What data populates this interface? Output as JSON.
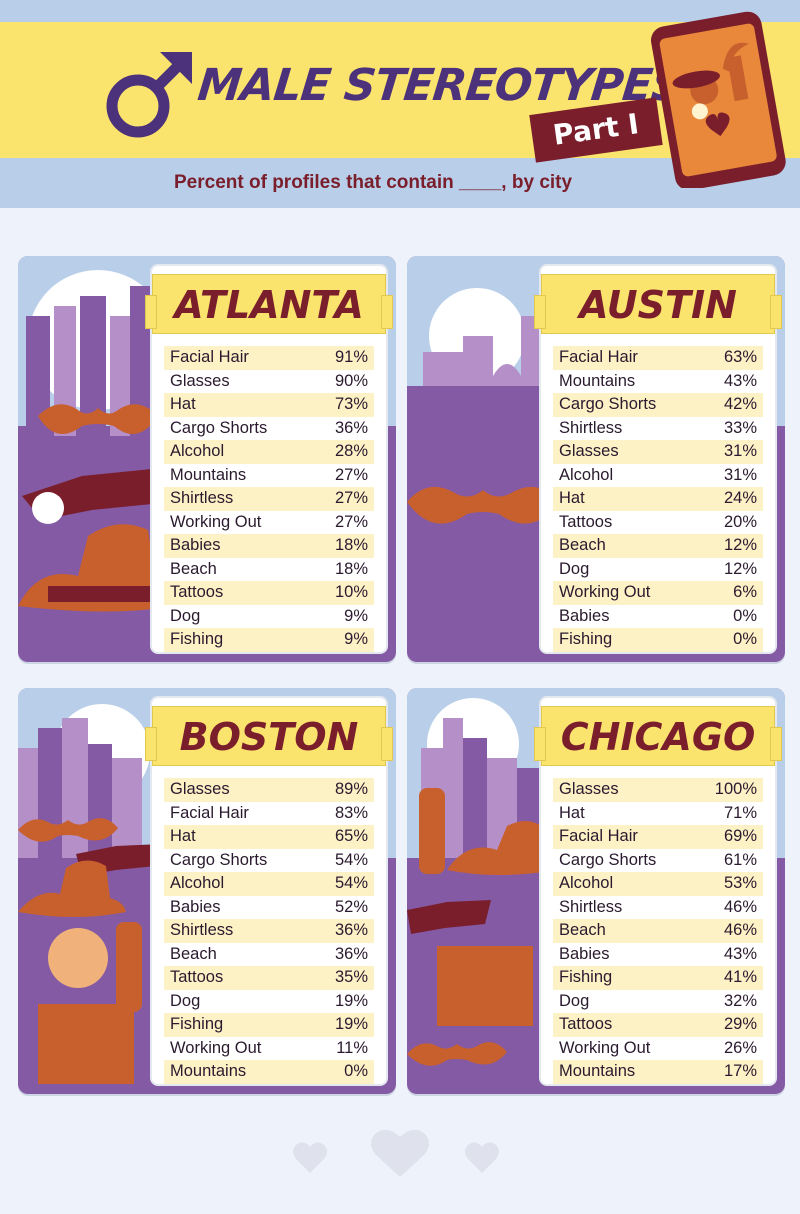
{
  "header": {
    "title": "MALE STEREOTYPES",
    "part": "Part I",
    "subtitle": "Percent of profiles that contain ____, by city"
  },
  "colors": {
    "purple": "#845aa4",
    "yellow": "#fbe46e",
    "maroon": "#7a1e2c",
    "sky": "#b9cfe9",
    "orange": "#c8602e"
  },
  "cities": [
    {
      "name": "ATLANTA",
      "items": [
        {
          "label": "Facial Hair",
          "value": "91%"
        },
        {
          "label": "Glasses",
          "value": "90%"
        },
        {
          "label": "Hat",
          "value": "73%"
        },
        {
          "label": "Cargo Shorts",
          "value": "36%"
        },
        {
          "label": "Alcohol",
          "value": "28%"
        },
        {
          "label": "Mountains",
          "value": "27%"
        },
        {
          "label": "Shirtless",
          "value": "27%"
        },
        {
          "label": "Working Out",
          "value": "27%"
        },
        {
          "label": "Babies",
          "value": "18%"
        },
        {
          "label": "Beach",
          "value": "18%"
        },
        {
          "label": "Tattoos",
          "value": "10%"
        },
        {
          "label": "Dog",
          "value": "9%"
        },
        {
          "label": "Fishing",
          "value": "9%"
        }
      ]
    },
    {
      "name": "AUSTIN",
      "items": [
        {
          "label": "Facial Hair",
          "value": "63%"
        },
        {
          "label": "Mountains",
          "value": "43%"
        },
        {
          "label": "Cargo Shorts",
          "value": "42%"
        },
        {
          "label": "Shirtless",
          "value": "33%"
        },
        {
          "label": "Glasses",
          "value": "31%"
        },
        {
          "label": "Alcohol",
          "value": "31%"
        },
        {
          "label": "Hat",
          "value": "24%"
        },
        {
          "label": "Tattoos",
          "value": "20%"
        },
        {
          "label": "Beach",
          "value": "12%"
        },
        {
          "label": "Dog",
          "value": "12%"
        },
        {
          "label": "Working Out",
          "value": "6%"
        },
        {
          "label": "Babies",
          "value": "0%"
        },
        {
          "label": "Fishing",
          "value": "0%"
        }
      ]
    },
    {
      "name": "BOSTON",
      "items": [
        {
          "label": "Glasses",
          "value": "89%"
        },
        {
          "label": "Facial Hair",
          "value": "83%"
        },
        {
          "label": "Hat",
          "value": "65%"
        },
        {
          "label": "Cargo Shorts",
          "value": "54%"
        },
        {
          "label": "Alcohol",
          "value": "54%"
        },
        {
          "label": "Babies",
          "value": "52%"
        },
        {
          "label": "Shirtless",
          "value": "36%"
        },
        {
          "label": "Beach",
          "value": "36%"
        },
        {
          "label": "Tattoos",
          "value": "35%"
        },
        {
          "label": "Dog",
          "value": "19%"
        },
        {
          "label": "Fishing",
          "value": "19%"
        },
        {
          "label": "Working Out",
          "value": "11%"
        },
        {
          "label": "Mountains",
          "value": "0%"
        }
      ]
    },
    {
      "name": "CHICAGO",
      "items": [
        {
          "label": "Glasses",
          "value": "100%"
        },
        {
          "label": "Hat",
          "value": "71%"
        },
        {
          "label": "Facial Hair",
          "value": "69%"
        },
        {
          "label": "Cargo Shorts",
          "value": "61%"
        },
        {
          "label": "Alcohol",
          "value": "53%"
        },
        {
          "label": "Shirtless",
          "value": "46%"
        },
        {
          "label": "Beach",
          "value": "46%"
        },
        {
          "label": "Babies",
          "value": "43%"
        },
        {
          "label": "Fishing",
          "value": "41%"
        },
        {
          "label": "Dog",
          "value": "32%"
        },
        {
          "label": "Tattoos",
          "value": "29%"
        },
        {
          "label": "Working Out",
          "value": "26%"
        },
        {
          "label": "Mountains",
          "value": "17%"
        }
      ]
    }
  ]
}
